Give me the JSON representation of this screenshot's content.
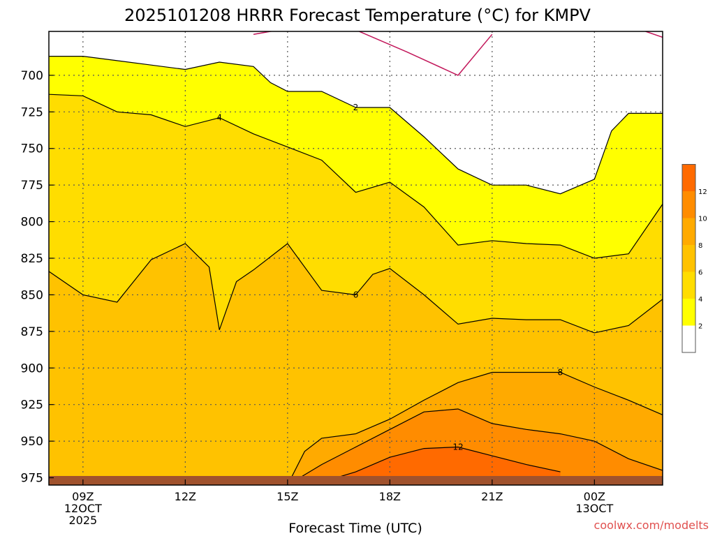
{
  "chart_data": {
    "type": "filled-contour",
    "title": "2025101208 HRRR Forecast Temperature (°C) for KMPV",
    "xlabel": "Forecast Time (UTC)",
    "credit": "coolwx.com/modelts",
    "y_scale": "pressure (hPa), increasing downward",
    "ylim": [
      980,
      670
    ],
    "y_ticks": [
      700,
      725,
      750,
      775,
      800,
      825,
      850,
      875,
      900,
      925,
      950,
      975
    ],
    "x_range_hours": [
      8,
      26
    ],
    "x_ticks": [
      {
        "hour": 9,
        "lines": [
          "09Z",
          "12OCT",
          "2025"
        ]
      },
      {
        "hour": 12,
        "lines": [
          "12Z"
        ]
      },
      {
        "hour": 15,
        "lines": [
          "15Z"
        ]
      },
      {
        "hour": 18,
        "lines": [
          "18Z"
        ]
      },
      {
        "hour": 21,
        "lines": [
          "21Z"
        ]
      },
      {
        "hour": 24,
        "lines": [
          "00Z",
          "13OCT"
        ]
      }
    ],
    "grid": true,
    "ground_color": "#a0522d",
    "legend": {
      "position": "right",
      "levels": [
        {
          "label": "",
          "color": "#ffffff"
        },
        {
          "label": "2",
          "color": "#ffff00"
        },
        {
          "label": "4",
          "color": "#ffdd00"
        },
        {
          "label": "6",
          "color": "#ffc200"
        },
        {
          "label": "8",
          "color": "#ffaa00"
        },
        {
          "label": "10",
          "color": "#ff8c00"
        },
        {
          "label": "12",
          "color": "#ff6a00"
        }
      ]
    },
    "contours": [
      {
        "level": 2,
        "band_color": "#ffff00",
        "points": [
          [
            8,
            687
          ],
          [
            9,
            687
          ],
          [
            10,
            690
          ],
          [
            11,
            693
          ],
          [
            12,
            696
          ],
          [
            13,
            691
          ],
          [
            14,
            694
          ],
          [
            14.5,
            705
          ],
          [
            15,
            711
          ],
          [
            16,
            711
          ],
          [
            17,
            722
          ],
          [
            18,
            722
          ],
          [
            19,
            742
          ],
          [
            20,
            764
          ],
          [
            21,
            775
          ],
          [
            22,
            775
          ],
          [
            23,
            781
          ],
          [
            24,
            771
          ],
          [
            24.5,
            738
          ],
          [
            25,
            726
          ],
          [
            26,
            726
          ]
        ],
        "label_at": [
          17,
          722
        ]
      },
      {
        "level": 4,
        "band_color": "#ffdd00",
        "points": [
          [
            8,
            713
          ],
          [
            9,
            714
          ],
          [
            10,
            725
          ],
          [
            11,
            727
          ],
          [
            12,
            735
          ],
          [
            13,
            729
          ],
          [
            14,
            740
          ],
          [
            15,
            749
          ],
          [
            16,
            758
          ],
          [
            17,
            780
          ],
          [
            18,
            773
          ],
          [
            19,
            790
          ],
          [
            20,
            816
          ],
          [
            21,
            813
          ],
          [
            22,
            815
          ],
          [
            23,
            816
          ],
          [
            24,
            825
          ],
          [
            25,
            822
          ],
          [
            26,
            788
          ]
        ],
        "label_at": [
          13,
          729
        ]
      },
      {
        "level": 6,
        "band_color": "#ffc200",
        "points": [
          [
            8,
            834
          ],
          [
            9,
            850
          ],
          [
            10,
            855
          ],
          [
            11,
            826
          ],
          [
            12,
            815
          ],
          [
            12.7,
            831
          ],
          [
            13,
            874
          ],
          [
            13.5,
            841
          ],
          [
            14,
            833
          ],
          [
            15,
            815
          ],
          [
            16,
            847
          ],
          [
            17,
            850
          ],
          [
            17.5,
            836
          ],
          [
            18,
            832
          ],
          [
            19,
            850
          ],
          [
            20,
            870
          ],
          [
            21,
            866
          ],
          [
            22,
            867
          ],
          [
            23,
            867
          ],
          [
            24,
            876
          ],
          [
            25,
            871
          ],
          [
            26,
            853
          ]
        ],
        "label_at": [
          17,
          850
        ]
      },
      {
        "level": 8,
        "band_color": "#ffaa00",
        "points": [
          [
            8,
            978
          ],
          [
            9,
            977
          ],
          [
            10,
            976
          ],
          [
            11,
            977
          ],
          [
            12,
            978
          ],
          [
            12.5,
            978
          ],
          [
            13,
            979
          ],
          [
            14,
            980
          ],
          [
            15,
            980
          ],
          [
            15.5,
            957
          ],
          [
            16,
            948
          ],
          [
            17,
            945
          ],
          [
            18,
            935
          ],
          [
            19,
            922
          ],
          [
            20,
            910
          ],
          [
            21,
            903
          ],
          [
            22,
            903
          ],
          [
            23,
            903
          ],
          [
            24,
            913
          ],
          [
            25,
            922
          ],
          [
            26,
            932
          ]
        ],
        "label_at": [
          23,
          903
        ]
      },
      {
        "level": 10,
        "band_color": "#ff8c00",
        "points": [
          [
            15,
            980
          ],
          [
            16,
            966
          ],
          [
            17,
            954
          ],
          [
            18,
            942
          ],
          [
            19,
            930
          ],
          [
            20,
            928
          ],
          [
            21,
            938
          ],
          [
            22,
            942
          ],
          [
            23,
            945
          ],
          [
            24,
            950
          ],
          [
            25,
            962
          ],
          [
            26,
            970
          ]
        ],
        "label_at": null
      },
      {
        "level": 12,
        "band_color": "#ff6a00",
        "points": [
          [
            16,
            978
          ],
          [
            17,
            971
          ],
          [
            18,
            961
          ],
          [
            19,
            955
          ],
          [
            20,
            954
          ],
          [
            21,
            960
          ],
          [
            22,
            966
          ],
          [
            23,
            971
          ]
        ],
        "label_at": [
          20,
          954
        ]
      }
    ],
    "freezing_line": {
      "color": "#c2185b",
      "segments": [
        [
          [
            14,
            672
          ],
          [
            15,
            668
          ]
        ],
        [
          [
            16,
            666
          ],
          [
            17,
            669
          ],
          [
            18.5,
            684
          ],
          [
            20,
            700
          ],
          [
            21,
            672
          ]
        ],
        [
          [
            25.5,
            670
          ],
          [
            26,
            674
          ]
        ]
      ]
    }
  }
}
